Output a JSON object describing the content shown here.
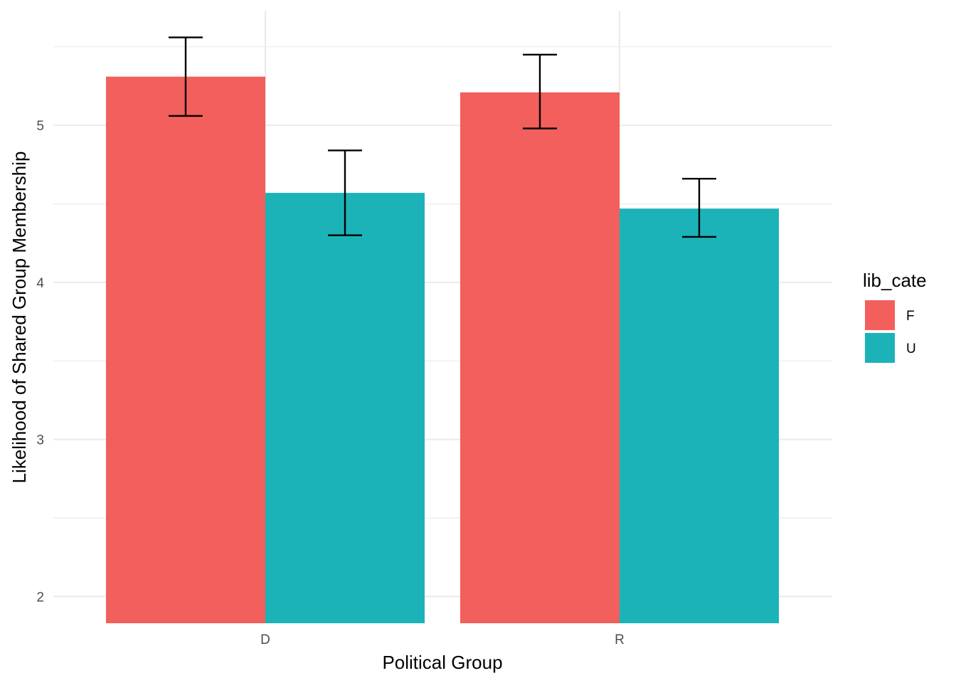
{
  "chart_data": {
    "type": "bar",
    "categories": [
      "D",
      "R"
    ],
    "series": [
      {
        "name": "F",
        "values": [
          5.31,
          5.21
        ],
        "error_low": [
          5.06,
          4.98
        ],
        "error_high": [
          5.56,
          5.45
        ]
      },
      {
        "name": "U",
        "values": [
          4.57,
          4.47
        ],
        "error_low": [
          4.3,
          4.29
        ],
        "error_high": [
          4.84,
          4.66
        ]
      }
    ],
    "xlabel": "Political Group",
    "ylabel": "Likelihood of Shared Group Membership",
    "ylim": [
      1.83,
      5.73
    ],
    "yticks": [
      2,
      3,
      4,
      5
    ],
    "y_minor_ticks": [
      2.5,
      3.5,
      4.5,
      5.5
    ],
    "grid": true,
    "legend": {
      "title": "lib_cate",
      "placement": "right"
    },
    "colors": {
      "F": "#f25f5c",
      "U": "#1bb3b7"
    }
  }
}
